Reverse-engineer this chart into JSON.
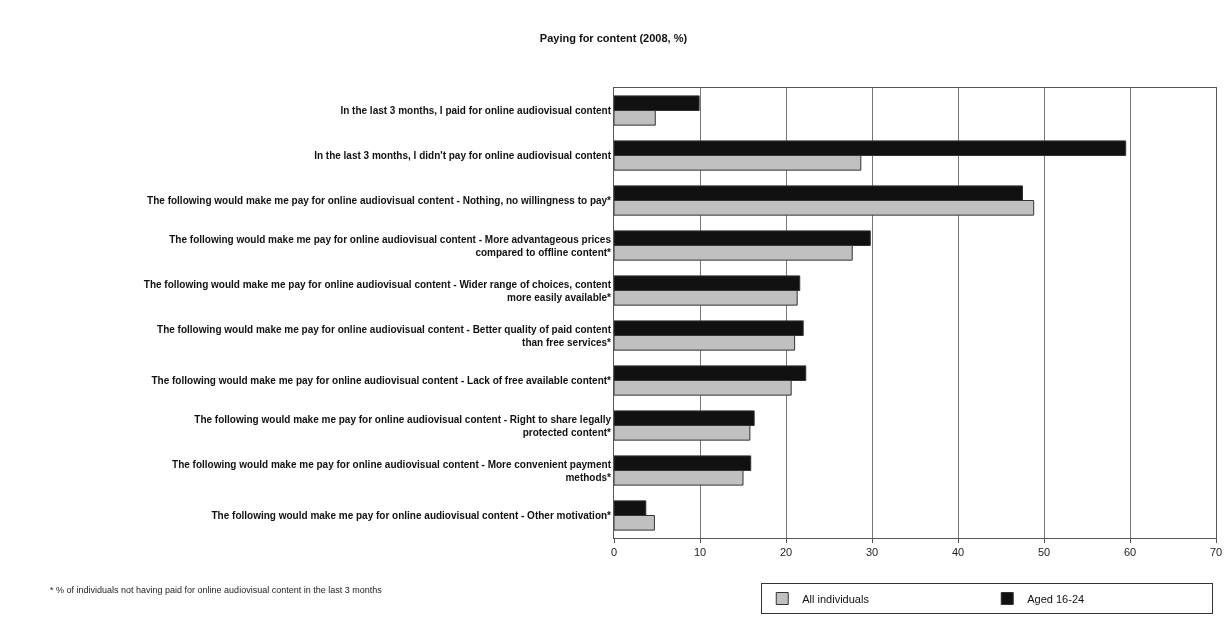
{
  "chart_data": {
    "type": "bar",
    "orientation": "horizontal",
    "title": "Paying for content (2008, %)",
    "categories": [
      "In the last 3 months, I paid for online audiovisual content",
      "In the last 3 months, I didn't pay for online audiovisual content",
      "The following would make me pay for online audiovisual content - Nothing, no willingness to pay*",
      "The following would make me pay for online audiovisual content - More advantageous prices compared to offline content*",
      "The following would make me pay for online audiovisual content - Wider range of choices, content more easily available*",
      "The following would make me pay for online audiovisual content - Better quality of paid content than free services*",
      "The following would make me pay for online audiovisual content - Lack of free available content*",
      "The following would make me pay for online audiovisual content - Right to share legally protected content*",
      "The following would make me pay for online audiovisual content - More convenient payment methods*",
      "The following would make me pay for online audiovisual content - Other motivation*"
    ],
    "series": [
      {
        "name": "Aged 16-24",
        "color": "#111111",
        "values": [
          9.9,
          59.5,
          47.5,
          29.8,
          21.6,
          22,
          22.3,
          16.3,
          15.9,
          3.7
        ]
      },
      {
        "name": "All individuals",
        "color": "#c0c0c0",
        "values": [
          4.8,
          28.7,
          48.8,
          27.7,
          21.3,
          21,
          20.6,
          15.8,
          15,
          4.7
        ]
      }
    ],
    "xlim": [
      0,
      70
    ],
    "xticks": [
      0,
      10,
      20,
      30,
      40,
      50,
      60,
      70
    ],
    "grid": "x",
    "legend": "bottom",
    "annotations": [
      "* % of individuals not having paid for online audiovisual content in the last 3 months"
    ]
  }
}
